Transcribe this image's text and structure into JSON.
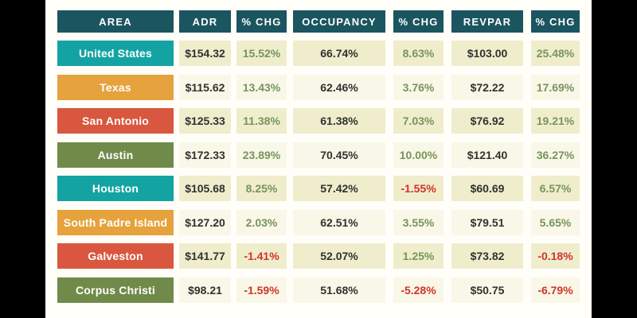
{
  "theme": {
    "background": "#000000",
    "panel": "#FFFEF9",
    "header_bg": "#1B5560",
    "header_text": "#FFFFFF",
    "row_label_teal": "#14A3A3",
    "row_label_orange": "#E6A23C",
    "row_label_red": "#D9573F",
    "row_label_green": "#708B49",
    "cell_bg": "#F0EDCD",
    "cell_bg_alt": "#F9F7E7",
    "value_text": "#2F332E",
    "positive_text": "#76955B",
    "negative_text": "#D03527"
  },
  "table": {
    "headers": [
      "AREA",
      "ADR",
      "% CHG",
      "OCCUPANCY",
      "% CHG",
      "REVPAR",
      "% CHG"
    ],
    "rows": [
      {
        "area": "United States",
        "adr": "$154.32",
        "adr_chg": "15.52%",
        "occupancy": "66.74%",
        "occ_chg": "8.63%",
        "revpar": "$103.00",
        "revpar_chg": "25.48%"
      },
      {
        "area": "Texas",
        "adr": "$115.62",
        "adr_chg": "13.43%",
        "occupancy": "62.46%",
        "occ_chg": "3.76%",
        "revpar": "$72.22",
        "revpar_chg": "17.69%"
      },
      {
        "area": "San Antonio",
        "adr": "$125.33",
        "adr_chg": "11.38%",
        "occupancy": "61.38%",
        "occ_chg": "7.03%",
        "revpar": "$76.92",
        "revpar_chg": "19.21%"
      },
      {
        "area": "Austin",
        "adr": "$172.33",
        "adr_chg": "23.89%",
        "occupancy": "70.45%",
        "occ_chg": "10.00%",
        "revpar": "$121.40",
        "revpar_chg": "36.27%"
      },
      {
        "area": "Houston",
        "adr": "$105.68",
        "adr_chg": "8.25%",
        "occupancy": "57.42%",
        "occ_chg": "-1.55%",
        "revpar": "$60.69",
        "revpar_chg": "6.57%"
      },
      {
        "area": "South Padre Island",
        "adr": "$127.20",
        "adr_chg": "2.03%",
        "occupancy": "62.51%",
        "occ_chg": "3.55%",
        "revpar": "$79.51",
        "revpar_chg": "5.65%"
      },
      {
        "area": "Galveston",
        "adr": "$141.77",
        "adr_chg": "-1.41%",
        "occupancy": "52.07%",
        "occ_chg": "1.25%",
        "revpar": "$73.82",
        "revpar_chg": "-0.18%"
      },
      {
        "area": "Corpus Christi",
        "adr": "$98.21",
        "adr_chg": "-1.59%",
        "occupancy": "51.68%",
        "occ_chg": "-5.28%",
        "revpar": "$50.75",
        "revpar_chg": "-6.79%"
      }
    ]
  },
  "chart_data": {
    "type": "table",
    "title": "Hotel performance by area: ADR, Occupancy, RevPAR with % change",
    "columns": [
      "AREA",
      "ADR",
      "% CHG",
      "OCCUPANCY",
      "% CHG",
      "REVPAR",
      "% CHG"
    ],
    "rows": [
      [
        "United States",
        "$154.32",
        "15.52%",
        "66.74%",
        "8.63%",
        "$103.00",
        "25.48%"
      ],
      [
        "Texas",
        "$115.62",
        "13.43%",
        "62.46%",
        "3.76%",
        "$72.22",
        "17.69%"
      ],
      [
        "San Antonio",
        "$125.33",
        "11.38%",
        "61.38%",
        "7.03%",
        "$76.92",
        "19.21%"
      ],
      [
        "Austin",
        "$172.33",
        "23.89%",
        "70.45%",
        "10.00%",
        "$121.40",
        "36.27%"
      ],
      [
        "Houston",
        "$105.68",
        "8.25%",
        "57.42%",
        "-1.55%",
        "$60.69",
        "6.57%"
      ],
      [
        "South Padre Island",
        "$127.20",
        "2.03%",
        "62.51%",
        "3.55%",
        "$79.51",
        "5.65%"
      ],
      [
        "Galveston",
        "$141.77",
        "-1.41%",
        "52.07%",
        "1.25%",
        "$73.82",
        "-0.18%"
      ],
      [
        "Corpus Christi",
        "$98.21",
        "-1.59%",
        "51.68%",
        "-5.28%",
        "$50.75",
        "-6.79%"
      ]
    ]
  }
}
